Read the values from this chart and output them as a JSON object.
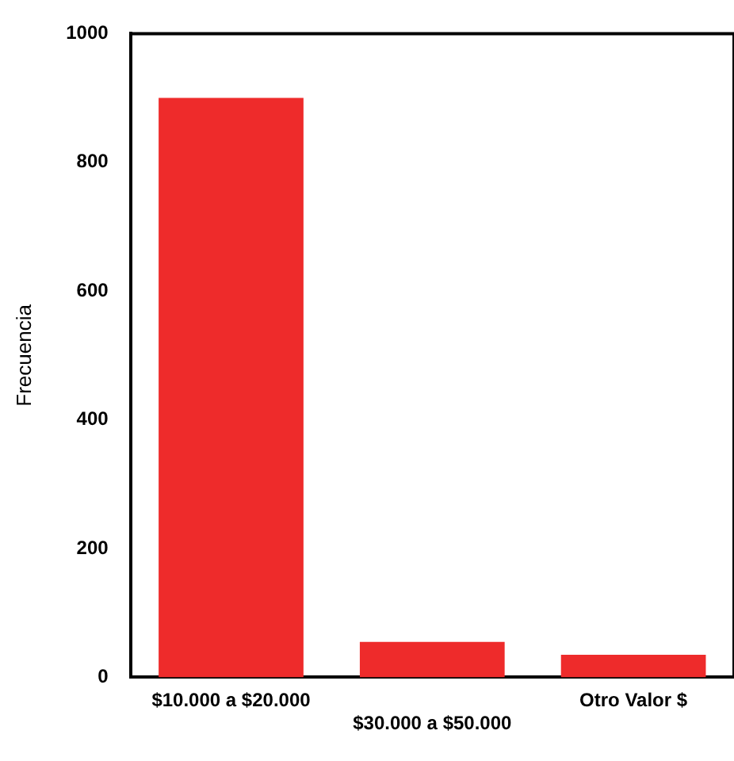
{
  "chart_data": {
    "type": "bar",
    "ylabel": "Frecuencia",
    "categories": [
      "$10.000 a $20.000",
      "$30.000 a $50.000",
      "Otro Valor $"
    ],
    "values": [
      900,
      55,
      35
    ],
    "color": "#ee2b2b",
    "ylim": [
      0,
      1000
    ],
    "yticks": [
      0,
      200,
      400,
      600,
      800,
      1000
    ],
    "grid": false,
    "legend": false
  }
}
